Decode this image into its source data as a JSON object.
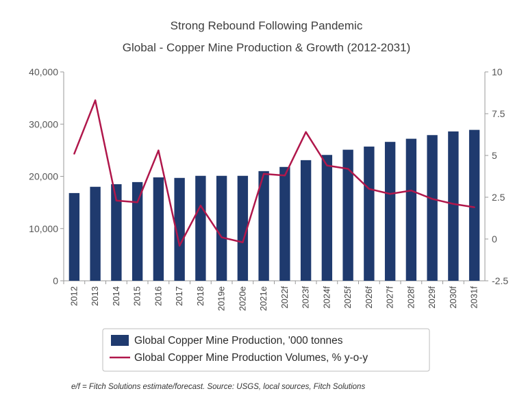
{
  "chart_data": {
    "type": "bar",
    "title": "Strong Rebound Following Pandemic",
    "subtitle": "Global - Copper Mine Production & Growth (2012-2031)",
    "categories": [
      "2012",
      "2013",
      "2014",
      "2015",
      "2016",
      "2017",
      "2018",
      "2019e",
      "2020e",
      "2021e",
      "2022f",
      "2023f",
      "2024f",
      "2025f",
      "2026f",
      "2027f",
      "2028f",
      "2029f",
      "2030f",
      "2031f"
    ],
    "y_left_ticks": [
      "40,000",
      "30,000",
      "20,000",
      "10,000",
      "0"
    ],
    "y_right_ticks": [
      "10",
      "7.5",
      "5",
      "2.5",
      "0",
      "-2.5"
    ],
    "ylim_left": [
      0,
      40000
    ],
    "ylim_right": [
      -2.5,
      10
    ],
    "series": [
      {
        "name": "Global Copper Mine Production, '000 tonnes",
        "type": "bar",
        "axis": "left",
        "color": "#1f3a6e",
        "values": [
          16800,
          18000,
          18500,
          18900,
          19800,
          19700,
          20100,
          20100,
          20100,
          21000,
          21800,
          23100,
          24100,
          25100,
          25700,
          26600,
          27200,
          27900,
          28600,
          28900
        ]
      },
      {
        "name": "Global Copper Mine Production Volumes, % y-o-y",
        "type": "line",
        "axis": "right",
        "color": "#b0174b",
        "values": [
          5.1,
          8.3,
          2.3,
          2.2,
          5.3,
          -0.4,
          2.0,
          0.1,
          -0.2,
          3.9,
          3.8,
          6.4,
          4.4,
          4.2,
          3.0,
          2.7,
          2.9,
          2.4,
          2.1,
          1.9
        ]
      }
    ],
    "legend_position": "bottom",
    "grid": false,
    "footnote": "e/f = Fitch Solutions estimate/forecast. Source: USGS, local sources, Fitch Solutions"
  }
}
